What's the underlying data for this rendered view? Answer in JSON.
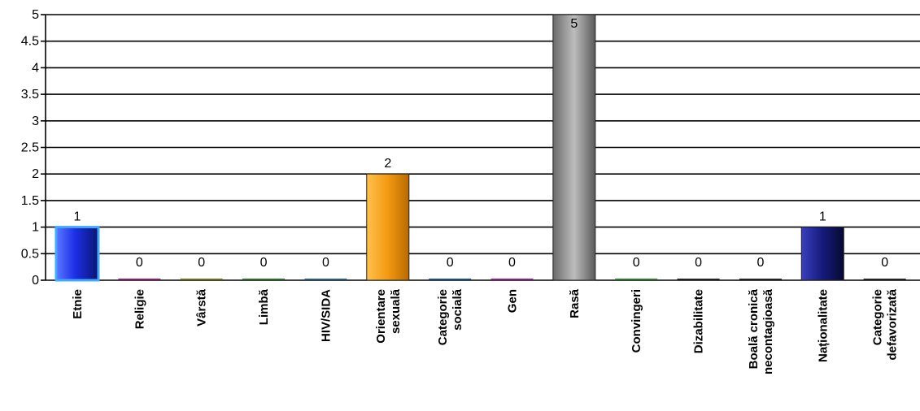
{
  "chart_data": {
    "type": "bar",
    "title": "",
    "xlabel": "",
    "ylabel": "",
    "ylim": [
      0,
      5
    ],
    "yticks": [
      "0",
      "0.5",
      "1",
      "1.5",
      "2",
      "2.5",
      "3",
      "3.5",
      "4",
      "4.5",
      "5"
    ],
    "grid": true,
    "legend": "none",
    "categories": [
      [
        "Etnie"
      ],
      [
        "Religie"
      ],
      [
        "Vârstă"
      ],
      [
        "Limbă"
      ],
      [
        "HIV/SIDA"
      ],
      [
        "Orientare",
        "sexuală"
      ],
      [
        "Categorie",
        "socială"
      ],
      [
        "Gen"
      ],
      [
        "Rasă"
      ],
      [
        "Convingeri"
      ],
      [
        "Dizabilitate"
      ],
      [
        "Boală cronică",
        "necontagioasă"
      ],
      [
        "Naționalitate"
      ],
      [
        "Categorie",
        "defavorizată"
      ]
    ],
    "values": [
      1,
      0,
      0,
      0,
      0,
      2,
      0,
      0,
      5,
      0,
      0,
      0,
      1,
      0
    ],
    "data_labels": [
      "1",
      "0",
      "0",
      "0",
      "0",
      "2",
      "0",
      "0",
      "5",
      "0",
      "0",
      "0",
      "1",
      "0"
    ],
    "bar_colors": [
      "#1c2fe6",
      "#8a1d6e",
      "#6b6b1a",
      "#2a6b2a",
      "#2a5a8a",
      "#f39a12",
      "#1a4a8a",
      "#8a1d8a",
      "#8c8c8c",
      "#2a7a2a",
      "#222222",
      "#222222",
      "#151a7a",
      "#222222"
    ]
  }
}
